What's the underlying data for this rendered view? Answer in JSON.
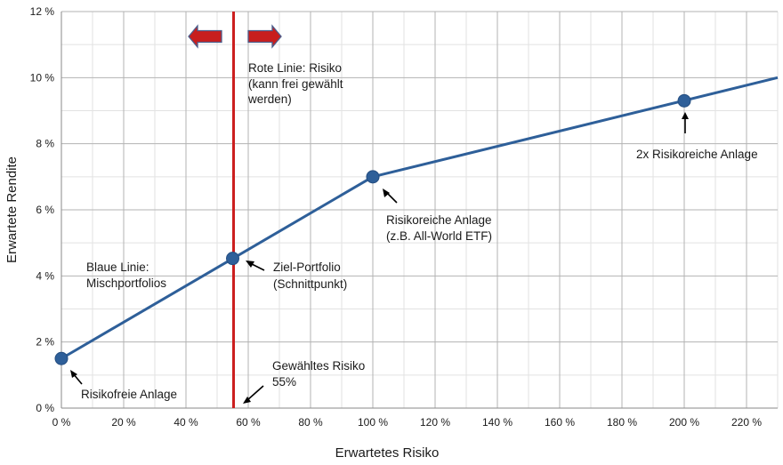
{
  "chart_data": {
    "type": "line",
    "title": "",
    "xlabel": "Erwartetes Risiko",
    "ylabel": "Erwartete Rendite",
    "xlim": [
      0,
      230
    ],
    "ylim": [
      0,
      12
    ],
    "grid": true,
    "x_ticks": [
      {
        "value": 0,
        "label": "0 %"
      },
      {
        "value": 20,
        "label": "20 %"
      },
      {
        "value": 40,
        "label": "40 %"
      },
      {
        "value": 60,
        "label": "60 %"
      },
      {
        "value": 80,
        "label": "80 %"
      },
      {
        "value": 100,
        "label": "100 %"
      },
      {
        "value": 120,
        "label": "120 %"
      },
      {
        "value": 140,
        "label": "140 %"
      },
      {
        "value": 160,
        "label": "160 %"
      },
      {
        "value": 180,
        "label": "180 %"
      },
      {
        "value": 200,
        "label": "200 %"
      },
      {
        "value": 220,
        "label": "220 %"
      }
    ],
    "y_ticks": [
      {
        "value": 0,
        "label": "0 %"
      },
      {
        "value": 2,
        "label": "2 %"
      },
      {
        "value": 4,
        "label": "4 %"
      },
      {
        "value": 6,
        "label": "6 %"
      },
      {
        "value": 8,
        "label": "8 %"
      },
      {
        "value": 10,
        "label": "10 %"
      },
      {
        "value": 12,
        "label": "12 %"
      }
    ],
    "series": [
      {
        "name": "Blaue Linie: Mischportfolios",
        "color": "#2e5f99",
        "x": [
          0,
          100,
          230
        ],
        "y": [
          1.5,
          7.0,
          10.0
        ]
      }
    ],
    "points": [
      {
        "name": "Risikofreie Anlage",
        "x": 0,
        "y": 1.5
      },
      {
        "name": "Ziel-Portfolio",
        "x": 55,
        "y": 4.53
      },
      {
        "name": "Risikoreiche Anlage",
        "x": 100,
        "y": 7.0
      },
      {
        "name": "2x Risikoreiche Anlage",
        "x": 200,
        "y": 9.3
      }
    ],
    "risk_line": {
      "x": 55,
      "color": "#cc1f1f"
    },
    "arrow_color": "#c81e1e",
    "arrow_outline": "#4b5e8c",
    "annotations": [
      {
        "id": "risk-line-label",
        "lines": [
          "Rote Linie: Risiko",
          "(kann frei gewählt",
          "werden)"
        ]
      },
      {
        "id": "blue-line-label",
        "lines": [
          "Blaue Linie:",
          "Mischportfolios"
        ]
      },
      {
        "id": "target-label",
        "lines": [
          "Ziel-Portfolio",
          "(Schnittpunkt)"
        ]
      },
      {
        "id": "risky-label",
        "lines": [
          "Risikoreiche Anlage",
          "(z.B. All-World ETF)"
        ]
      },
      {
        "id": "double-label",
        "lines": [
          "2x Risikoreiche Anlage"
        ]
      },
      {
        "id": "chosen-risk-label",
        "lines": [
          "Gewähltes Risiko",
          "55%"
        ]
      },
      {
        "id": "riskfree-label",
        "lines": [
          "Risikofreie Anlage"
        ]
      }
    ]
  }
}
